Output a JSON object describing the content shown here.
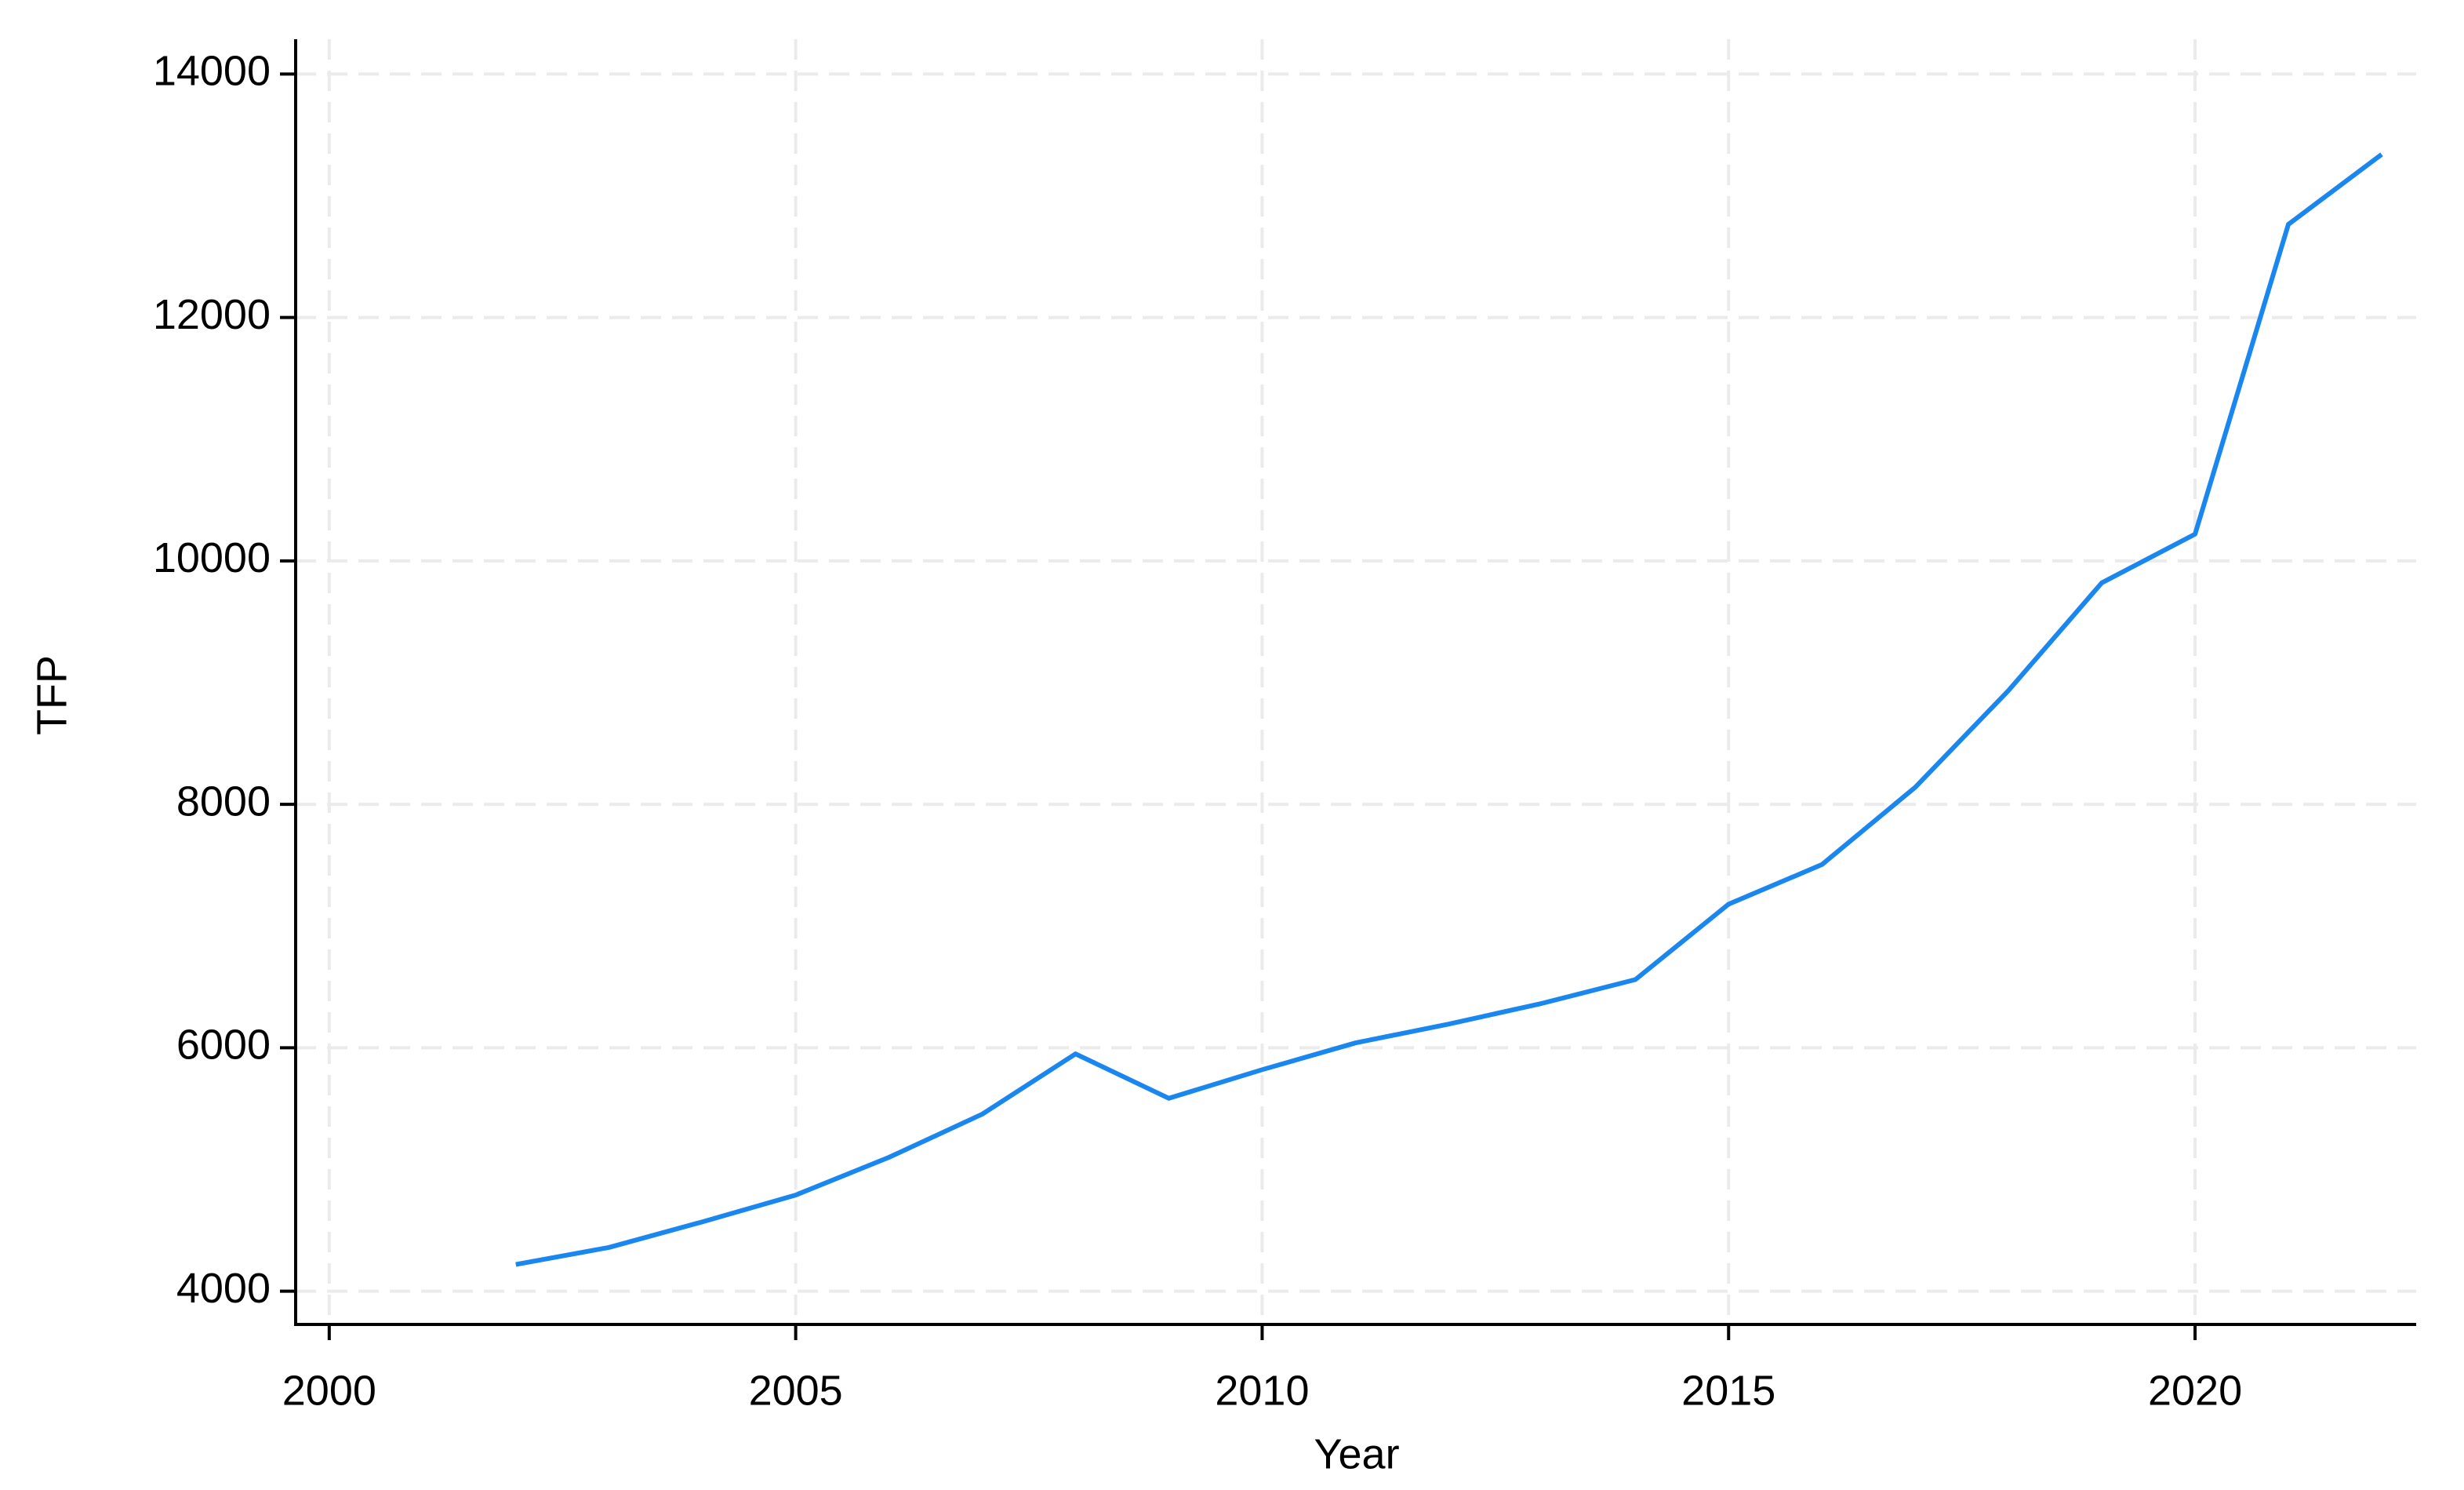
{
  "chart_data": {
    "type": "line",
    "x_label": "Year",
    "y_label": "TFP",
    "x": [
      2002,
      2003,
      2004,
      2005,
      2006,
      2007,
      2008,
      2009,
      2010,
      2011,
      2012,
      2013,
      2014,
      2015,
      2016,
      2017,
      2018,
      2019,
      2020,
      2021,
      2022
    ],
    "series": [
      {
        "color": "#1a87f0",
        "values": [
          4220,
          4360,
          4570,
          4790,
          5100,
          5455,
          5950,
          5585,
          5820,
          6040,
          6195,
          6365,
          6560,
          7180,
          7505,
          8140,
          8935,
          9820,
          10220,
          12765,
          13340
        ]
      }
    ],
    "xlim": [
      1999.64,
      2022.37
    ],
    "xticks": [
      2000,
      2005,
      2010,
      2015,
      2020
    ],
    "ylim": [
      3727,
      14286
    ],
    "yticks": [
      4000,
      6000,
      8000,
      10000,
      12000,
      14000
    ],
    "grid": true
  }
}
